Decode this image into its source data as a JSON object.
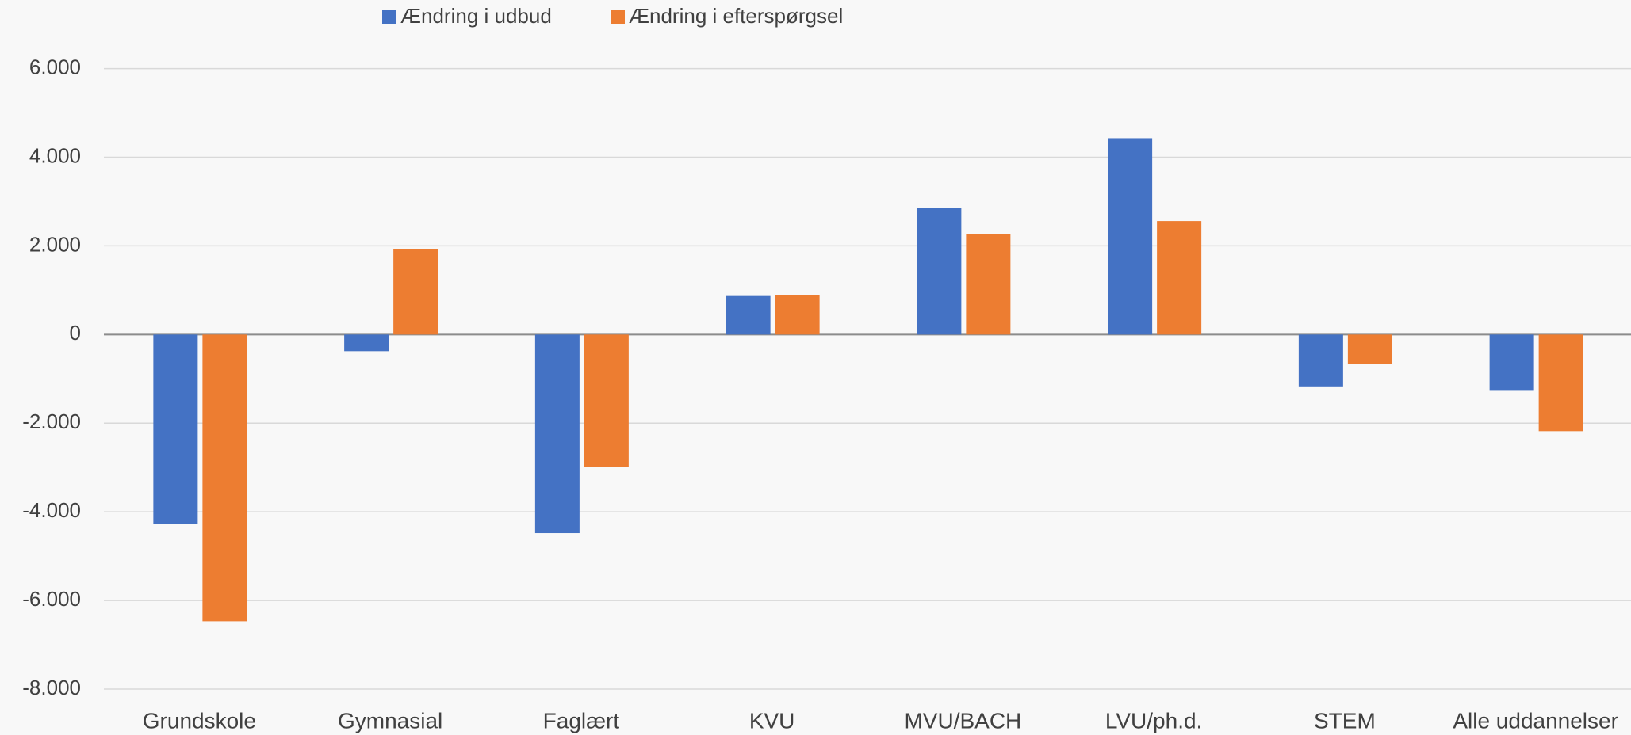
{
  "chart_data": {
    "type": "bar",
    "categories": [
      "Grundskole",
      "Gymnasial",
      "Faglært",
      "KVU",
      "MVU/BACH",
      "LVU/ph.d.",
      "STEM",
      "Alle uddannelser"
    ],
    "series": [
      {
        "name": "Ændring i udbud",
        "color": "#4472c4",
        "values": [
          -4270,
          -375,
          -4480,
          870,
          2860,
          4430,
          -1170,
          -1270
        ]
      },
      {
        "name": "Ændring i efterspørgsel",
        "color": "#ed7d31",
        "values": [
          -6470,
          1920,
          -2980,
          890,
          2270,
          2560,
          -660,
          -2180
        ]
      }
    ],
    "ylim": [
      -8000,
      6000
    ],
    "yticks": [
      {
        "value": -8000,
        "label": "-8.000"
      },
      {
        "value": -6000,
        "label": "-6.000"
      },
      {
        "value": -4000,
        "label": "-4.000"
      },
      {
        "value": -2000,
        "label": "-2.000"
      },
      0,
      {
        "value": 2000,
        "label": "2.000"
      },
      {
        "value": 4000,
        "label": "4.000"
      },
      {
        "value": 6000,
        "label": "6.000"
      }
    ],
    "grid": true
  }
}
